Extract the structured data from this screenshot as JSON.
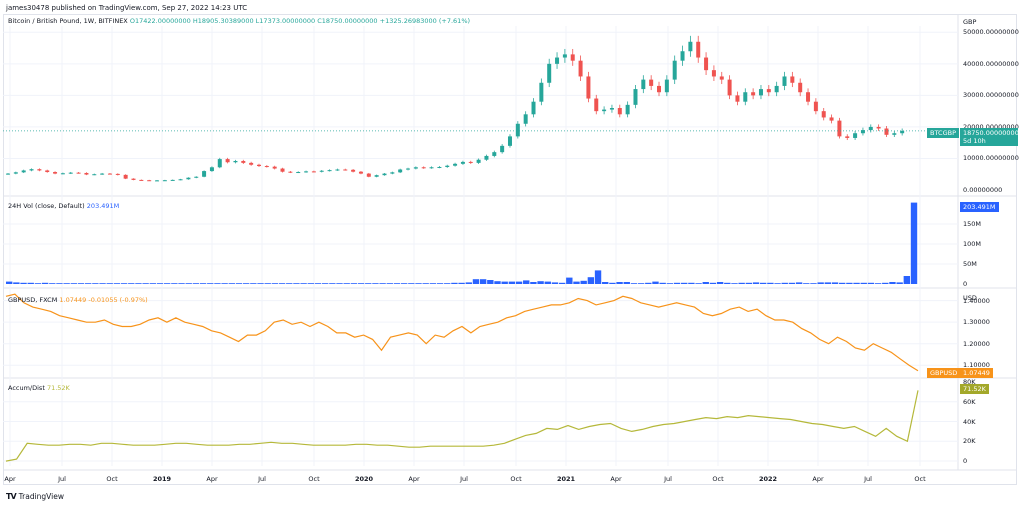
{
  "header": {
    "published": "james30478 published on TradingView.com, Sep 27, 2022 14:23 UTC",
    "symbol_title": "Bitcoin / British Pound, 1W, BITFINEX",
    "open": "O17422.00000000",
    "high": "H18905.30389000",
    "low": "L17373.00000000",
    "close": "C18750.00000000",
    "change": "+1325.26983000 (+7.61%)"
  },
  "colors": {
    "up": "#26a69a",
    "down": "#ef5350",
    "volume": "#2962ff",
    "gbpusd": "#f7931a",
    "accum": "#b5b83a",
    "grid": "#f0f3fa",
    "border": "#e0e3eb"
  },
  "price_pane": {
    "currency": "GBP",
    "axis_labels": [
      "50000.00000000",
      "40000.00000000",
      "30000.00000000",
      "20000.00000000",
      "10000.00000000",
      "0.00000000"
    ],
    "last_badge_symbol": "BTCGBP",
    "last_badge_value": "18750.00000000",
    "last_badge_countdown": "5d 10h"
  },
  "volume_pane": {
    "title": "24H Vol (close, Default)",
    "value": "203.491M",
    "axis_labels": [
      "150M",
      "100M",
      "50M",
      "0"
    ]
  },
  "gbpusd_pane": {
    "title": "GBPUSD, FXCM",
    "value": "1.07449",
    "change": "-0.01055 (-0.97%)",
    "currency": "USD",
    "axis_labels": [
      "1.40000",
      "1.30000",
      "1.20000",
      "1.10000"
    ],
    "badge_symbol": "GBPUSD",
    "badge_value": "1.07449"
  },
  "accum_pane": {
    "title": "Accum/Dist",
    "value": "71.52K",
    "axis_labels": [
      "80K",
      "60K",
      "40K",
      "20K",
      "0"
    ]
  },
  "time_axis": [
    {
      "label": "Apr",
      "year": false
    },
    {
      "label": "Jul",
      "year": false
    },
    {
      "label": "Oct",
      "year": false
    },
    {
      "label": "2019",
      "year": true
    },
    {
      "label": "Apr",
      "year": false
    },
    {
      "label": "Jul",
      "year": false
    },
    {
      "label": "Oct",
      "year": false
    },
    {
      "label": "2020",
      "year": true
    },
    {
      "label": "Apr",
      "year": false
    },
    {
      "label": "Jul",
      "year": false
    },
    {
      "label": "Oct",
      "year": false
    },
    {
      "label": "2021",
      "year": true
    },
    {
      "label": "Apr",
      "year": false
    },
    {
      "label": "Jul",
      "year": false
    },
    {
      "label": "Oct",
      "year": false
    },
    {
      "label": "2022",
      "year": true
    },
    {
      "label": "Apr",
      "year": false
    },
    {
      "label": "Jul",
      "year": false
    },
    {
      "label": "Oct",
      "year": false
    }
  ],
  "footer": {
    "logo": "TV",
    "brand": "TradingView"
  },
  "chart_data": [
    {
      "type": "candlestick",
      "title": "Bitcoin / British Pound, 1W, BITFINEX",
      "ylabel": "GBP",
      "ylim": [
        0,
        52000
      ],
      "x_start": "2018-04",
      "x_end": "2022-09",
      "series_close_approx": [
        5200,
        5600,
        6200,
        6600,
        6200,
        5700,
        5200,
        5300,
        5500,
        5400,
        4900,
        5000,
        5200,
        5100,
        4800,
        3600,
        3200,
        3100,
        3000,
        3050,
        3100,
        3200,
        3400,
        3900,
        4200,
        6000,
        7200,
        9800,
        8800,
        9200,
        8600,
        8000,
        7600,
        7400,
        6800,
        5800,
        5600,
        5700,
        5900,
        5800,
        6100,
        6300,
        6500,
        6400,
        5800,
        5200,
        4200,
        4700,
        5200,
        5600,
        6500,
        6800,
        7200,
        7000,
        7200,
        7300,
        7700,
        8300,
        8900,
        8600,
        9600,
        10800,
        12000,
        14000,
        17000,
        21000,
        24000,
        28000,
        34000,
        40000,
        42000,
        43000,
        41000,
        36000,
        29000,
        25000,
        25500,
        26000,
        24000,
        27000,
        32000,
        35000,
        33000,
        31000,
        35000,
        41000,
        44000,
        47000,
        42000,
        38000,
        36000,
        35000,
        30000,
        28000,
        31000,
        30000,
        32000,
        31000,
        33000,
        36000,
        34000,
        31000,
        28000,
        25000,
        23000,
        22000,
        17000,
        16500,
        18000,
        19000,
        20000,
        19500,
        17500,
        18000,
        18750
      ],
      "last": 18750,
      "open": 17422,
      "high": 18905.30389,
      "low": 17373,
      "change_pct": 7.61
    },
    {
      "type": "bar",
      "title": "24H Vol (close, Default)",
      "ylim": [
        0,
        210000000
      ],
      "values_millions_approx": [
        6,
        4,
        3,
        3,
        2,
        3,
        2,
        2,
        2,
        2,
        2,
        2,
        2,
        2,
        2,
        2,
        2,
        2,
        2,
        2,
        2,
        2,
        2,
        2,
        2,
        2,
        2,
        2,
        2,
        2,
        2,
        2,
        2,
        2,
        2,
        2,
        2,
        2,
        2,
        2,
        2,
        2,
        2,
        2,
        2,
        2,
        2,
        2,
        2,
        2,
        2,
        2,
        2,
        2,
        2,
        2,
        2,
        2,
        2,
        2,
        2,
        2,
        3,
        3,
        4,
        12,
        12,
        10,
        7,
        6,
        6,
        6,
        9,
        5,
        7,
        6,
        4,
        3,
        16,
        6,
        8,
        17,
        34,
        5,
        3,
        5,
        5,
        2,
        2,
        3,
        6,
        3,
        2,
        3,
        3,
        3,
        2,
        5,
        3,
        5,
        3,
        2,
        3,
        3,
        4,
        3,
        3,
        2,
        3,
        3,
        4,
        2,
        2,
        4,
        4,
        4,
        3,
        3,
        3,
        3,
        3,
        2,
        3,
        5,
        4,
        20,
        203.491
      ],
      "last": 203.491
    },
    {
      "type": "line",
      "title": "GBPUSD, FXCM",
      "ylim": [
        1.05,
        1.44
      ],
      "values_approx": [
        1.42,
        1.43,
        1.39,
        1.37,
        1.36,
        1.35,
        1.33,
        1.32,
        1.31,
        1.3,
        1.3,
        1.31,
        1.29,
        1.28,
        1.28,
        1.29,
        1.31,
        1.32,
        1.3,
        1.32,
        1.3,
        1.29,
        1.28,
        1.26,
        1.25,
        1.23,
        1.21,
        1.24,
        1.24,
        1.26,
        1.3,
        1.31,
        1.29,
        1.3,
        1.28,
        1.3,
        1.28,
        1.25,
        1.25,
        1.23,
        1.24,
        1.22,
        1.17,
        1.23,
        1.24,
        1.25,
        1.24,
        1.2,
        1.24,
        1.23,
        1.26,
        1.28,
        1.25,
        1.28,
        1.29,
        1.3,
        1.32,
        1.33,
        1.35,
        1.36,
        1.37,
        1.38,
        1.38,
        1.39,
        1.41,
        1.4,
        1.38,
        1.39,
        1.4,
        1.42,
        1.41,
        1.39,
        1.38,
        1.37,
        1.38,
        1.39,
        1.38,
        1.37,
        1.34,
        1.33,
        1.34,
        1.36,
        1.37,
        1.35,
        1.36,
        1.33,
        1.31,
        1.31,
        1.3,
        1.27,
        1.25,
        1.22,
        1.2,
        1.23,
        1.21,
        1.18,
        1.17,
        1.2,
        1.18,
        1.16,
        1.13,
        1.1,
        1.07449
      ],
      "last": 1.07449,
      "change": -0.01055,
      "change_pct": -0.97
    },
    {
      "type": "line",
      "title": "Accum/Dist",
      "ylim": [
        -5000,
        82000
      ],
      "values_k_approx": [
        0,
        2,
        18,
        17,
        16,
        16,
        17,
        17,
        16,
        18,
        18,
        17,
        16,
        16,
        16,
        17,
        18,
        18,
        17,
        16,
        16,
        16,
        17,
        17,
        18,
        19,
        18,
        18,
        17,
        16,
        16,
        16,
        16,
        17,
        17,
        16,
        16,
        15,
        14,
        14,
        15,
        15,
        15,
        15,
        15,
        15,
        16,
        18,
        22,
        26,
        28,
        33,
        32,
        36,
        32,
        35,
        37,
        38,
        33,
        30,
        32,
        35,
        37,
        38,
        40,
        42,
        44,
        43,
        45,
        44,
        46,
        45,
        44,
        43,
        42,
        40,
        38,
        37,
        35,
        33,
        35,
        30,
        25,
        33,
        25,
        20,
        71.52
      ],
      "last_k": 71.52
    }
  ]
}
